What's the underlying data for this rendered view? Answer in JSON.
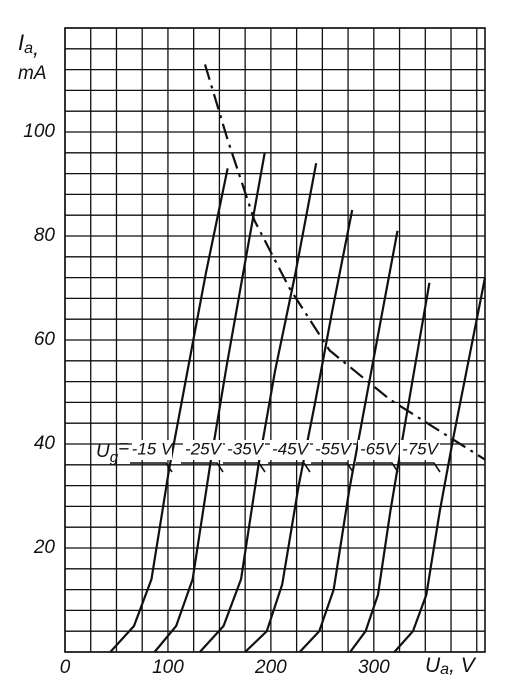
{
  "chart_data": {
    "type": "line",
    "xlabel_symbol": "U",
    "xlabel_subscript": "a",
    "xlabel_unit": ", V",
    "ylabel_symbol": "I",
    "ylabel_subscript": "a",
    "ylabel_unit": "mA",
    "ylabel_comma": ",",
    "legend_symbol": "U",
    "legend_subscript": "g",
    "legend_sign": "=",
    "xlim": [
      0,
      408
    ],
    "ylim": [
      0,
      120
    ],
    "xticks": [
      0,
      100,
      200,
      300
    ],
    "yticks": [
      20,
      40,
      60,
      80,
      100
    ],
    "grid": true,
    "xgrid": [
      0,
      25,
      50,
      75,
      100,
      125,
      150,
      175,
      200,
      225,
      250,
      275,
      300,
      325,
      350,
      375,
      400
    ],
    "ygrid": [
      0,
      4,
      8,
      12,
      16,
      20,
      24,
      28,
      32,
      36,
      40,
      44,
      48,
      52,
      56,
      60,
      64,
      68,
      72,
      76,
      80,
      84,
      88,
      92,
      96,
      100,
      104,
      108,
      112,
      116,
      120
    ],
    "color": "#111111",
    "series": [
      {
        "name": "-15 V",
        "x": [
          44,
          67,
          84,
          101,
          118,
          137,
          158
        ],
        "values": [
          0,
          5,
          14,
          35,
          53,
          73,
          93
        ]
      },
      {
        "name": "-25V",
        "x": [
          87,
          108,
          124,
          141,
          157,
          175,
          194
        ],
        "values": [
          0,
          5,
          14,
          36,
          55,
          75,
          96
        ]
      },
      {
        "name": "-35V",
        "x": [
          131,
          154,
          171,
          188,
          204,
          224,
          244
        ],
        "values": [
          0,
          5,
          14,
          36,
          54,
          73,
          94
        ]
      },
      {
        "name": "-45V",
        "x": [
          175,
          196,
          211,
          227,
          243,
          260,
          279
        ],
        "values": [
          0,
          4,
          13,
          32,
          48,
          66,
          85
        ]
      },
      {
        "name": "-55V",
        "x": [
          228,
          247,
          261,
          276,
          290,
          306,
          323
        ],
        "values": [
          0,
          4,
          12,
          31,
          46,
          63,
          81
        ]
      },
      {
        "name": "-65V",
        "x": [
          277,
          292,
          304,
          316,
          327,
          340,
          354
        ],
        "values": [
          0,
          4,
          11,
          27,
          40,
          55,
          71
        ]
      },
      {
        "name": "-75V",
        "x": [
          320,
          338,
          351,
          364,
          377,
          392,
          408
        ],
        "values": [
          0,
          4,
          11,
          27,
          41,
          56,
          72
        ]
      }
    ],
    "boundary": {
      "x": [
        136,
        158,
        184,
        218,
        257,
        316,
        408
      ],
      "values": [
        113,
        98.5,
        83,
        70,
        58,
        48.5,
        37
      ]
    }
  }
}
